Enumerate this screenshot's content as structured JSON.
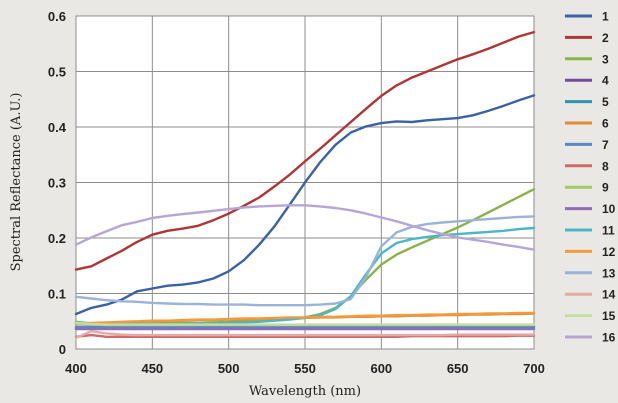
{
  "chart_data": {
    "type": "line",
    "title": "",
    "xlabel": "Wavelength (nm)",
    "ylabel": "Spectral Reflectance (A.U.)",
    "xlim": [
      400,
      700
    ],
    "ylim": [
      0,
      0.6
    ],
    "x_ticks": [
      "400",
      "450",
      "500",
      "550",
      "600",
      "650",
      "700"
    ],
    "y_ticks": [
      "0",
      "0.1",
      "0.2",
      "0.3",
      "0.4",
      "0.5",
      "0.6"
    ],
    "grid": "on",
    "legend_position": "right",
    "x": [
      400,
      410,
      420,
      430,
      440,
      450,
      460,
      470,
      480,
      490,
      500,
      510,
      520,
      530,
      540,
      550,
      560,
      570,
      580,
      590,
      600,
      610,
      620,
      630,
      640,
      650,
      660,
      670,
      680,
      690,
      700
    ],
    "series": [
      {
        "name": "1",
        "color": "#3b62a4",
        "values": [
          0.063,
          0.074,
          0.08,
          0.089,
          0.104,
          0.109,
          0.114,
          0.116,
          0.12,
          0.127,
          0.14,
          0.16,
          0.188,
          0.221,
          0.26,
          0.3,
          0.337,
          0.368,
          0.39,
          0.401,
          0.407,
          0.41,
          0.409,
          0.412,
          0.414,
          0.416,
          0.421,
          0.429,
          0.438,
          0.448,
          0.457
        ]
      },
      {
        "name": "2",
        "color": "#b03535",
        "values": [
          0.143,
          0.149,
          0.163,
          0.177,
          0.193,
          0.206,
          0.213,
          0.217,
          0.222,
          0.232,
          0.244,
          0.258,
          0.273,
          0.293,
          0.314,
          0.338,
          0.361,
          0.385,
          0.409,
          0.433,
          0.456,
          0.475,
          0.489,
          0.5,
          0.511,
          0.522,
          0.531,
          0.541,
          0.552,
          0.563,
          0.571
        ]
      },
      {
        "name": "3",
        "color": "#8bb349",
        "values": [
          0.049,
          0.046,
          0.044,
          0.044,
          0.045,
          0.045,
          0.046,
          0.047,
          0.047,
          0.048,
          0.049,
          0.05,
          0.051,
          0.052,
          0.054,
          0.057,
          0.063,
          0.074,
          0.095,
          0.125,
          0.152,
          0.17,
          0.183,
          0.195,
          0.207,
          0.219,
          0.232,
          0.246,
          0.26,
          0.274,
          0.288
        ]
      },
      {
        "name": "4",
        "color": "#6e4f9a",
        "values": [
          0.038,
          0.038,
          0.038,
          0.038,
          0.038,
          0.038,
          0.038,
          0.038,
          0.038,
          0.038,
          0.038,
          0.038,
          0.038,
          0.038,
          0.038,
          0.038,
          0.038,
          0.038,
          0.038,
          0.038,
          0.038,
          0.038,
          0.038,
          0.038,
          0.038,
          0.039,
          0.039,
          0.039,
          0.039,
          0.04,
          0.04
        ]
      },
      {
        "name": "5",
        "color": "#2f93ab",
        "values": [
          0.037,
          0.037,
          0.037,
          0.037,
          0.037,
          0.037,
          0.037,
          0.037,
          0.037,
          0.037,
          0.037,
          0.037,
          0.037,
          0.037,
          0.037,
          0.037,
          0.037,
          0.037,
          0.037,
          0.037,
          0.037,
          0.037,
          0.037,
          0.037,
          0.037,
          0.037,
          0.038,
          0.038,
          0.038,
          0.038,
          0.038
        ]
      },
      {
        "name": "6",
        "color": "#e48a34",
        "values": [
          0.045,
          0.046,
          0.047,
          0.048,
          0.049,
          0.05,
          0.05,
          0.051,
          0.052,
          0.052,
          0.053,
          0.053,
          0.054,
          0.055,
          0.055,
          0.056,
          0.057,
          0.057,
          0.058,
          0.058,
          0.059,
          0.059,
          0.06,
          0.06,
          0.061,
          0.061,
          0.062,
          0.062,
          0.063,
          0.063,
          0.064
        ]
      },
      {
        "name": "7",
        "color": "#5a86c8",
        "values": [
          0.04,
          0.04,
          0.04,
          0.04,
          0.04,
          0.04,
          0.04,
          0.04,
          0.04,
          0.04,
          0.04,
          0.04,
          0.04,
          0.04,
          0.04,
          0.04,
          0.04,
          0.04,
          0.04,
          0.04,
          0.04,
          0.04,
          0.04,
          0.04,
          0.04,
          0.04,
          0.041,
          0.041,
          0.041,
          0.041,
          0.041
        ]
      },
      {
        "name": "8",
        "color": "#cf6a66",
        "values": [
          0.022,
          0.025,
          0.022,
          0.022,
          0.022,
          0.022,
          0.022,
          0.022,
          0.022,
          0.022,
          0.022,
          0.022,
          0.022,
          0.022,
          0.022,
          0.022,
          0.022,
          0.022,
          0.022,
          0.022,
          0.022,
          0.022,
          0.023,
          0.023,
          0.023,
          0.023,
          0.023,
          0.023,
          0.023,
          0.024,
          0.024
        ]
      },
      {
        "name": "9",
        "color": "#a9c566",
        "values": [
          0.046,
          0.044,
          0.043,
          0.043,
          0.043,
          0.043,
          0.043,
          0.043,
          0.043,
          0.043,
          0.043,
          0.043,
          0.043,
          0.043,
          0.043,
          0.043,
          0.043,
          0.043,
          0.043,
          0.043,
          0.043,
          0.043,
          0.043,
          0.043,
          0.043,
          0.043,
          0.043,
          0.043,
          0.043,
          0.043,
          0.043
        ]
      },
      {
        "name": "10",
        "color": "#8a6fb6",
        "values": [
          0.036,
          0.036,
          0.036,
          0.036,
          0.036,
          0.036,
          0.036,
          0.036,
          0.036,
          0.036,
          0.036,
          0.036,
          0.036,
          0.036,
          0.036,
          0.036,
          0.036,
          0.036,
          0.036,
          0.036,
          0.036,
          0.036,
          0.036,
          0.036,
          0.036,
          0.036,
          0.036,
          0.036,
          0.036,
          0.036,
          0.036
        ]
      },
      {
        "name": "11",
        "color": "#4cb6c9",
        "values": [
          0.048,
          0.046,
          0.045,
          0.045,
          0.045,
          0.045,
          0.045,
          0.045,
          0.046,
          0.046,
          0.047,
          0.048,
          0.049,
          0.051,
          0.053,
          0.056,
          0.061,
          0.072,
          0.095,
          0.135,
          0.172,
          0.191,
          0.198,
          0.202,
          0.205,
          0.207,
          0.209,
          0.211,
          0.213,
          0.216,
          0.218
        ]
      },
      {
        "name": "12",
        "color": "#f39a3c",
        "values": [
          0.046,
          0.047,
          0.048,
          0.049,
          0.05,
          0.051,
          0.051,
          0.052,
          0.053,
          0.053,
          0.054,
          0.055,
          0.055,
          0.056,
          0.057,
          0.057,
          0.058,
          0.058,
          0.059,
          0.06,
          0.06,
          0.061,
          0.061,
          0.062,
          0.062,
          0.063,
          0.063,
          0.064,
          0.064,
          0.065,
          0.065
        ]
      },
      {
        "name": "13",
        "color": "#9ab3d8",
        "values": [
          0.094,
          0.091,
          0.088,
          0.086,
          0.085,
          0.083,
          0.082,
          0.081,
          0.081,
          0.08,
          0.08,
          0.08,
          0.079,
          0.079,
          0.079,
          0.079,
          0.08,
          0.082,
          0.09,
          0.13,
          0.185,
          0.21,
          0.22,
          0.225,
          0.228,
          0.23,
          0.232,
          0.234,
          0.236,
          0.238,
          0.239
        ]
      },
      {
        "name": "14",
        "color": "#e3aaa6",
        "values": [
          0.02,
          0.032,
          0.028,
          0.026,
          0.025,
          0.025,
          0.025,
          0.025,
          0.025,
          0.025,
          0.025,
          0.025,
          0.025,
          0.025,
          0.025,
          0.025,
          0.025,
          0.025,
          0.025,
          0.025,
          0.025,
          0.025,
          0.025,
          0.025,
          0.025,
          0.026,
          0.026,
          0.026,
          0.026,
          0.026,
          0.026
        ]
      },
      {
        "name": "15",
        "color": "#c6dca3",
        "values": [
          0.047,
          0.045,
          0.044,
          0.044,
          0.044,
          0.044,
          0.044,
          0.044,
          0.044,
          0.044,
          0.044,
          0.044,
          0.044,
          0.044,
          0.044,
          0.044,
          0.044,
          0.044,
          0.044,
          0.044,
          0.044,
          0.044,
          0.044,
          0.044,
          0.044,
          0.044,
          0.044,
          0.044,
          0.044,
          0.044,
          0.044
        ]
      },
      {
        "name": "16",
        "color": "#b6a6d6",
        "values": [
          0.188,
          0.201,
          0.212,
          0.223,
          0.229,
          0.236,
          0.24,
          0.243,
          0.246,
          0.249,
          0.252,
          0.255,
          0.257,
          0.258,
          0.259,
          0.259,
          0.257,
          0.254,
          0.25,
          0.244,
          0.237,
          0.23,
          0.222,
          0.214,
          0.207,
          0.201,
          0.197,
          0.193,
          0.188,
          0.184,
          0.179
        ]
      }
    ]
  }
}
